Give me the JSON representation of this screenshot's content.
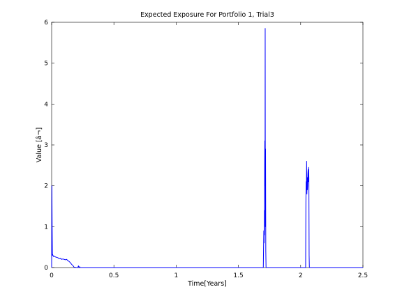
{
  "chart_data": {
    "type": "line",
    "title": "Expected Exposure For Portfolio 1, Trial3",
    "xlabel": "Time[Years]",
    "ylabel": "Value [â¬]",
    "xlim": [
      0,
      2.5
    ],
    "ylim": [
      0,
      6
    ],
    "xticks": [
      "0",
      "0.5",
      "1",
      "1.5",
      "2",
      "2.5"
    ],
    "yticks": [
      "0",
      "1",
      "2",
      "3",
      "4",
      "5",
      "6"
    ],
    "grid": false,
    "legend": "none",
    "series": [
      {
        "color": "#0000ff",
        "x": [
          0.0,
          0.002,
          0.004,
          0.006,
          0.008,
          0.01,
          0.015,
          0.02,
          0.03,
          0.04,
          0.05,
          0.06,
          0.07,
          0.08,
          0.09,
          0.1,
          0.11,
          0.12,
          0.13,
          0.14,
          0.15,
          0.16,
          0.17,
          0.175,
          0.18,
          0.2,
          0.21,
          0.215,
          0.22,
          0.225,
          0.23,
          0.25,
          1.5,
          1.7,
          1.702,
          1.704,
          1.706,
          1.708,
          1.709,
          1.71,
          1.711,
          1.712,
          1.713,
          1.714,
          1.715,
          1.716,
          1.717,
          1.718,
          1.72,
          1.722,
          1.724,
          1.73,
          1.8,
          2.0,
          2.04,
          2.042,
          2.044,
          2.046,
          2.048,
          2.05,
          2.052,
          2.054,
          2.056,
          2.058,
          2.06,
          2.062,
          2.064,
          2.066,
          2.068,
          2.07,
          2.08,
          2.5
        ],
        "y": [
          0.0,
          2.0,
          1.0,
          0.3,
          0.32,
          0.3,
          0.27,
          0.28,
          0.26,
          0.25,
          0.24,
          0.22,
          0.23,
          0.2,
          0.21,
          0.2,
          0.19,
          0.2,
          0.17,
          0.15,
          0.12,
          0.08,
          0.05,
          0.03,
          0.01,
          0.0,
          0.0,
          0.04,
          0.0,
          0.02,
          0.0,
          0.0,
          0.0,
          0.0,
          0.5,
          0.9,
          0.6,
          1.4,
          0.8,
          1.3,
          2.5,
          3.1,
          2.0,
          2.4,
          5.85,
          3.0,
          1.0,
          2.9,
          0.4,
          0.0,
          0.0,
          0.0,
          0.0,
          0.0,
          0.0,
          1.6,
          2.1,
          1.9,
          2.6,
          1.8,
          2.2,
          1.9,
          2.0,
          2.3,
          2.4,
          2.1,
          2.45,
          2.2,
          0.3,
          0.0,
          0.0,
          0.0
        ]
      }
    ]
  }
}
